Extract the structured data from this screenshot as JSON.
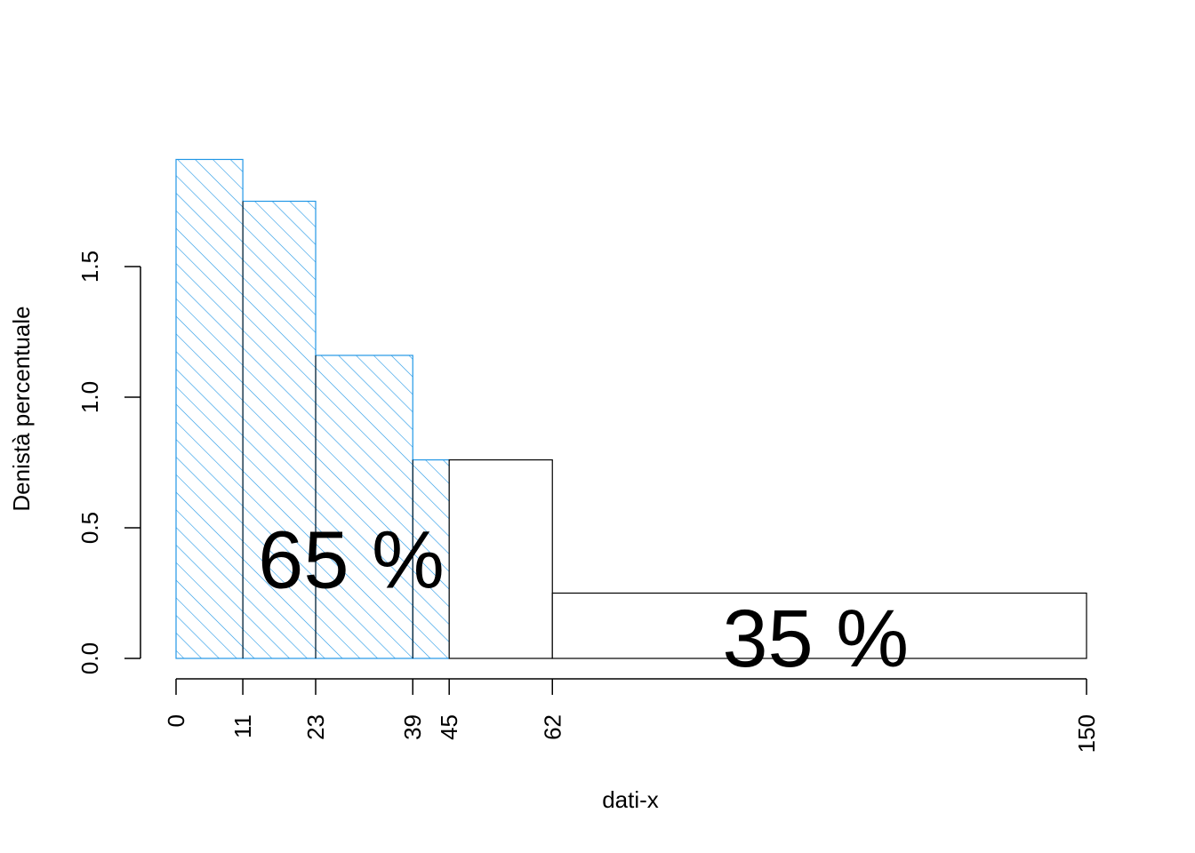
{
  "chart_data": {
    "type": "bar",
    "subtype": "histogram-unequal-bins",
    "xlabel": "dati-x",
    "ylabel": "Denistà percentuale",
    "ylim": [
      0,
      1.9
    ],
    "xlim": [
      0,
      150
    ],
    "y_ticks": [
      "0.0",
      "0.5",
      "1.0",
      "1.5"
    ],
    "x_breaks": [
      "0",
      "11",
      "23",
      "39",
      "45",
      "62",
      "150"
    ],
    "highlight_break": "45",
    "highlight_color": "#df536b",
    "hatch_color": "#2297e6",
    "bins": [
      {
        "from": 0,
        "to": 11,
        "density": 1.91,
        "hatched": true
      },
      {
        "from": 11,
        "to": 23,
        "density": 1.75,
        "hatched": true
      },
      {
        "from": 23,
        "to": 39,
        "density": 1.16,
        "hatched": true
      },
      {
        "from": 39,
        "to": 45,
        "density": 0.76,
        "hatched": true
      },
      {
        "from": 45,
        "to": 62,
        "density": 0.76,
        "hatched": false
      },
      {
        "from": 62,
        "to": 150,
        "density": 0.25,
        "hatched": false
      }
    ],
    "annotations": [
      {
        "text": "65 %",
        "x": 13.5,
        "y": 0.27
      },
      {
        "text": "35 %",
        "x": 90,
        "y": -0.03
      }
    ],
    "grid": false,
    "legend": "none"
  }
}
